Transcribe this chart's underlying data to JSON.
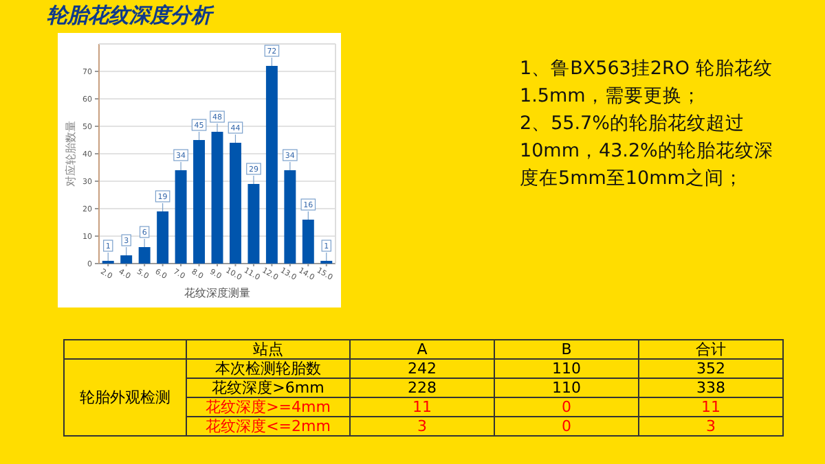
{
  "chart_data": [
    {
      "type": "bar",
      "title": "轮胎花纹深度分析",
      "xlabel": "花纹深度测量",
      "ylabel": "对应轮胎数量",
      "categories": [
        "2.0",
        "4.0",
        "5.0",
        "6.0",
        "7.0",
        "8.0",
        "9.0",
        "10.0",
        "11.0",
        "12.0",
        "13.0",
        "14.0",
        "15.0"
      ],
      "values": [
        1,
        3,
        6,
        19,
        34,
        45,
        48,
        44,
        29,
        72,
        34,
        16,
        1
      ],
      "color": "#0055ad",
      "ylim": [
        0,
        80
      ],
      "yticks": [
        0,
        10,
        20,
        30,
        40,
        50,
        60,
        70
      ],
      "grid": "y",
      "data_labels": true
    },
    {
      "type": "other",
      "annotations": [
        "1、鲁BX563挂2RO 轮胎花纹1.5mm，需要更换；",
        "2、55.7%的轮胎花纹超过10mm，43.2%的轮胎花纹深度在5mm至10mm之间；"
      ]
    },
    {
      "type": "other",
      "title": "轮胎外观检测",
      "categories": [
        "站点",
        "A",
        "B",
        "合计"
      ],
      "y_categories": [
        "本次检测轮胎数",
        "花纹深度>6mm",
        "花纹深度>=4mm",
        "花纹深度<=2mm"
      ],
      "cell_labels": [
        [
          "242",
          "110",
          "352"
        ],
        [
          "228",
          "110",
          "338"
        ],
        [
          "11",
          "0",
          "11"
        ],
        [
          "3",
          "0",
          "3"
        ]
      ],
      "colors": [
        "#000000",
        "#000000",
        "#ff0000",
        "#ff0000"
      ]
    }
  ]
}
